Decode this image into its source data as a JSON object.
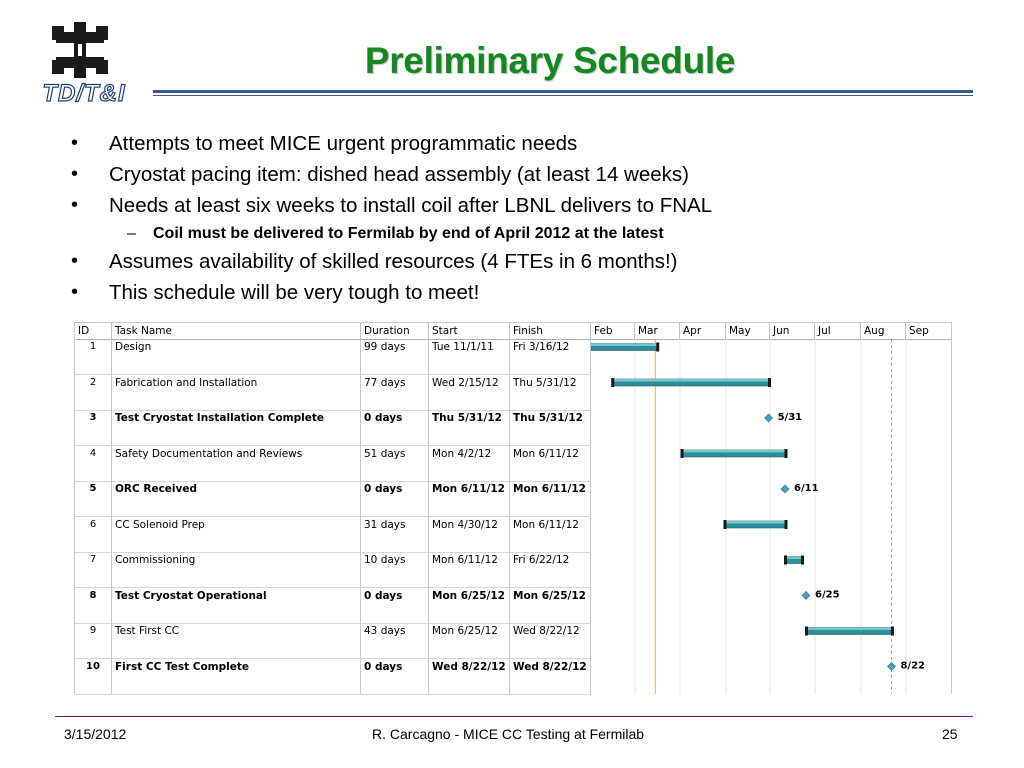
{
  "slide": {
    "title": "Preliminary Schedule",
    "logo_text": "TD/T&I",
    "title_color": "#13881f",
    "rule_color": "#3b5a8c"
  },
  "bullets": [
    {
      "text": "Attempts to meet MICE urgent programmatic needs"
    },
    {
      "text": "Cryostat pacing item: dished head assembly (at least 14 weeks)"
    },
    {
      "text": "Needs at least six weeks to install coil after LBNL delivers to FNAL"
    },
    {
      "sub": true,
      "text": "Coil must be delivered to Fermilab by end of April 2012 at the latest"
    },
    {
      "text": "Assumes availability of skilled resources (4 FTEs in 6 months!)"
    },
    {
      "text": "This schedule will be very tough to meet!"
    }
  ],
  "bullet_symbol": "•",
  "sub_symbol": "–",
  "gantt": {
    "headers": {
      "id": "ID",
      "task": "Task Name",
      "duration": "Duration",
      "start": "Start",
      "finish": "Finish"
    },
    "months": [
      "Feb",
      "Mar",
      "Apr",
      "May",
      "Jun",
      "Jul",
      "Aug",
      "Sep"
    ],
    "bar_color": "#2b8f9b",
    "milestone_color": "#4a9fc4",
    "today_line_color": "#f0a868",
    "rows": [
      {
        "id": "1",
        "task": "Design",
        "duration": "99 days",
        "start": "Tue 11/1/11",
        "finish": "Fri 3/16/12",
        "milestone": false
      },
      {
        "id": "2",
        "task": "Fabrication and Installation",
        "duration": "77 days",
        "start": "Wed 2/15/12",
        "finish": "Thu 5/31/12",
        "milestone": false
      },
      {
        "id": "3",
        "task": "Test Cryostat Installation Complete",
        "duration": "0 days",
        "start": "Thu 5/31/12",
        "finish": "Thu 5/31/12",
        "milestone": true,
        "label": "5/31"
      },
      {
        "id": "4",
        "task": "Safety Documentation and Reviews",
        "duration": "51 days",
        "start": "Mon 4/2/12",
        "finish": "Mon 6/11/12",
        "milestone": false
      },
      {
        "id": "5",
        "task": "ORC Received",
        "duration": "0 days",
        "start": "Mon 6/11/12",
        "finish": "Mon 6/11/12",
        "milestone": true,
        "label": "6/11"
      },
      {
        "id": "6",
        "task": "CC Solenoid Prep",
        "duration": "31 days",
        "start": "Mon 4/30/12",
        "finish": "Mon 6/11/12",
        "milestone": false
      },
      {
        "id": "7",
        "task": "Commissioning",
        "duration": "10 days",
        "start": "Mon 6/11/12",
        "finish": "Fri 6/22/12",
        "milestone": false
      },
      {
        "id": "8",
        "task": "Test Cryostat Operational",
        "duration": "0 days",
        "start": "Mon 6/25/12",
        "finish": "Mon 6/25/12",
        "milestone": true,
        "label": "6/25"
      },
      {
        "id": "9",
        "task": "Test First CC",
        "duration": "43 days",
        "start": "Mon 6/25/12",
        "finish": "Wed 8/22/12",
        "milestone": false
      },
      {
        "id": "10",
        "task": "First CC Test Complete",
        "duration": "0 days",
        "start": "Wed 8/22/12",
        "finish": "Wed 8/22/12",
        "milestone": true,
        "label": "8/22"
      }
    ]
  },
  "footer": {
    "date": "3/15/2012",
    "center": "R. Carcagno - MICE CC Testing at Fermilab",
    "page": "25",
    "rule_color": "#7a1f2b"
  }
}
